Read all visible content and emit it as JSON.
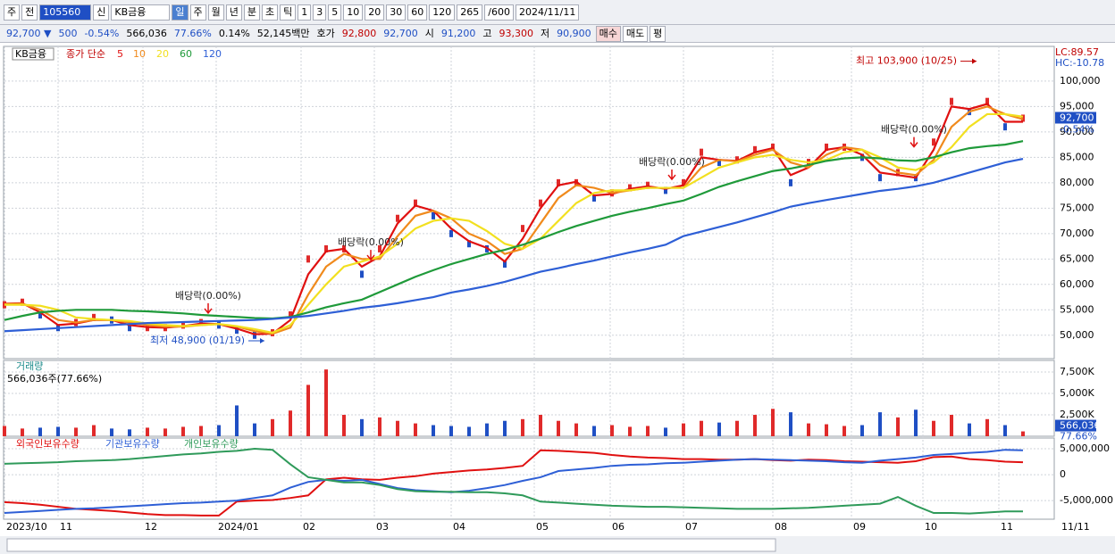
{
  "toolbar": {
    "row1": [
      "주",
      "전",
      "105560",
      "신",
      "KB금융",
      "일",
      "주",
      "월",
      "년",
      "분",
      "초",
      "틱",
      "1",
      "3",
      "5",
      "10",
      "20",
      "30",
      "60",
      "120",
      "265",
      "/600",
      "2024/11/11"
    ],
    "row2": [
      "92,700 ▼",
      "500",
      "-0.54%",
      "566,036",
      "77.66%",
      "0.14%",
      "52,145백만",
      "호가",
      "92,800",
      "92,700",
      "시",
      "91,200",
      "고",
      "93,300",
      "저",
      "90,900",
      "매수",
      "매도",
      "평"
    ]
  },
  "chart_data": [
    {
      "type": "line",
      "title": "KB금융",
      "legend_title": "종가 단순",
      "colors": {
        "up": "#e02a2a",
        "down": "#1f4fc4"
      },
      "xlim": [
        0,
        58.75
      ],
      "xticks": [
        {
          "value": 0,
          "label": "2023/10"
        },
        {
          "value": 3,
          "label": "11"
        },
        {
          "value": 7.75,
          "label": "12"
        },
        {
          "value": 11.85,
          "label": "2024/01"
        },
        {
          "value": 16.6,
          "label": "02"
        },
        {
          "value": 20.7,
          "label": "03"
        },
        {
          "value": 25,
          "label": "04"
        },
        {
          "value": 29.65,
          "label": "05"
        },
        {
          "value": 33.9,
          "label": "06"
        },
        {
          "value": 38,
          "label": "07"
        },
        {
          "value": 43,
          "label": "08"
        },
        {
          "value": 47.4,
          "label": "09"
        },
        {
          "value": 51.4,
          "label": "10"
        },
        {
          "value": 55.65,
          "label": "11"
        }
      ],
      "end_label": "11/11",
      "ylim": [
        45400,
        106300
      ],
      "yticks": [
        {
          "value": 50000,
          "label": "50,000"
        },
        {
          "value": 55000,
          "label": "55,000"
        },
        {
          "value": 60000,
          "label": "60,000"
        },
        {
          "value": 65000,
          "label": "65,000"
        },
        {
          "value": 70000,
          "label": "70,000"
        },
        {
          "value": 75000,
          "label": "75,000"
        },
        {
          "value": 80000,
          "label": "80,000"
        },
        {
          "value": 85000,
          "label": "85,000"
        },
        {
          "value": 90000,
          "label": "90,000"
        },
        {
          "value": 95000,
          "label": "95,000"
        },
        {
          "value": 100000,
          "label": "100,000"
        }
      ],
      "values": [
        56000,
        56500,
        54000,
        51500,
        52500,
        53500,
        53000,
        51500,
        51500,
        51500,
        52000,
        52500,
        52000,
        51000,
        50000,
        50500,
        54000,
        65000,
        67000,
        67000,
        62000,
        67000,
        73000,
        76000,
        73500,
        70000,
        68000,
        67000,
        64000,
        71000,
        76000,
        80000,
        80000,
        77000,
        78000,
        79000,
        79500,
        78500,
        80000,
        86000,
        84000,
        84500,
        86500,
        87000,
        80000,
        84000,
        87000,
        87000,
        85000,
        81000,
        82000,
        81000,
        88000,
        96000,
        94000,
        96000,
        91000,
        92700
      ],
      "last_label": "92,700",
      "last_change": "-0.54%",
      "lc": "LC:89.57",
      "hc": "HC:-10.78",
      "series": [
        {
          "name": "5",
          "color": "#e01010",
          "values": [
            56200,
            56300,
            54500,
            52000,
            52300,
            53000,
            53000,
            52000,
            51600,
            51500,
            51800,
            52300,
            52200,
            51300,
            50200,
            50300,
            53000,
            62000,
            66500,
            67000,
            63500,
            65500,
            72000,
            75500,
            74500,
            71000,
            68500,
            67200,
            64500,
            69000,
            75000,
            79500,
            80200,
            77500,
            77800,
            78800,
            79300,
            78800,
            79500,
            85000,
            84500,
            84300,
            86000,
            86800,
            81500,
            83000,
            86500,
            87000,
            85500,
            82000,
            81500,
            81000,
            86500,
            95000,
            94500,
            95500,
            92000,
            92000
          ]
        },
        {
          "name": "10",
          "color": "#f08a1c",
          "values": [
            56100,
            56200,
            55000,
            53000,
            52500,
            53000,
            53000,
            52500,
            52000,
            51700,
            51700,
            52000,
            52200,
            51700,
            50800,
            50300,
            51500,
            58000,
            63500,
            66000,
            65000,
            65000,
            69500,
            73500,
            74500,
            73000,
            70000,
            68500,
            66000,
            67000,
            72000,
            77000,
            79500,
            79000,
            78000,
            78500,
            79000,
            79000,
            79000,
            83000,
            84500,
            84200,
            85500,
            86500,
            84000,
            83000,
            85500,
            87000,
            86500,
            83500,
            82000,
            81500,
            84500,
            91000,
            94000,
            95000,
            93500,
            92500
          ]
        },
        {
          "name": "20",
          "color": "#f2e020",
          "values": [
            56000,
            56000,
            55800,
            55000,
            53500,
            53200,
            53000,
            52800,
            52300,
            52000,
            51800,
            52000,
            52200,
            51800,
            51200,
            50500,
            52000,
            56000,
            60000,
            63500,
            64500,
            65500,
            68000,
            71000,
            72500,
            73000,
            72500,
            70500,
            68000,
            67000,
            69000,
            72500,
            76000,
            78000,
            78500,
            78500,
            79000,
            79000,
            79000,
            81000,
            83000,
            84000,
            85000,
            85500,
            84500,
            84000,
            84500,
            86000,
            86500,
            85000,
            83000,
            82500,
            84000,
            87000,
            91000,
            93500,
            93500,
            93000
          ]
        },
        {
          "name": "60",
          "color": "#1f9a3a",
          "values": [
            53000,
            53800,
            54500,
            54800,
            55000,
            55000,
            55000,
            54800,
            54700,
            54500,
            54300,
            54000,
            53800,
            53600,
            53400,
            53300,
            53600,
            54500,
            55500,
            56300,
            57000,
            58500,
            60000,
            61500,
            62800,
            64000,
            65000,
            66000,
            66800,
            67800,
            69000,
            70300,
            71500,
            72500,
            73500,
            74300,
            75000,
            75800,
            76500,
            77800,
            79200,
            80300,
            81300,
            82300,
            82800,
            83500,
            84300,
            84800,
            85000,
            84800,
            84400,
            84300,
            85000,
            86000,
            86800,
            87200,
            87500,
            88200
          ]
        },
        {
          "name": "120",
          "color": "#2e5fd6",
          "values": [
            50800,
            51000,
            51200,
            51400,
            51600,
            51800,
            52000,
            52200,
            52400,
            52500,
            52600,
            52700,
            52800,
            52900,
            53000,
            53200,
            53500,
            53800,
            54300,
            54800,
            55400,
            55800,
            56300,
            56900,
            57500,
            58400,
            59000,
            59700,
            60500,
            61500,
            62500,
            63200,
            64000,
            64700,
            65500,
            66300,
            67000,
            67800,
            69500,
            70400,
            71300,
            72200,
            73200,
            74200,
            75300,
            76000,
            76600,
            77200,
            77800,
            78400,
            78800,
            79300,
            80000,
            81000,
            82000,
            83000,
            84000,
            84700
          ]
        }
      ],
      "high_low": [
        {
          "text": "최고 103,900 (10/25)",
          "x": 54.4,
          "y": 103900,
          "color": "#c00000"
        },
        {
          "text": "최저 48,900 (01/19)",
          "x": 14.55,
          "y": 48900,
          "color": "#1f4fc4"
        }
      ],
      "dividends": [
        {
          "text": "배당락(0.00%)",
          "x": 11.4,
          "y": 57700
        },
        {
          "text": "배당락(0.00%)",
          "x": 20.5,
          "y": 68200
        },
        {
          "text": "배당락(0.00%)",
          "x": 37.35,
          "y": 84000
        },
        {
          "text": "배당락(0.00%)",
          "x": 50.9,
          "y": 90400
        }
      ]
    },
    {
      "type": "bar",
      "title": "거래량",
      "subtitle": "566,036주(77.66%)",
      "ylim": [
        0,
        8650
      ],
      "yticks": [
        {
          "value": 2500,
          "label": "2,500K"
        },
        {
          "value": 5000,
          "label": "5,000K"
        },
        {
          "value": 7500,
          "label": "7,500K"
        }
      ],
      "values": [
        1200,
        900,
        1000,
        1100,
        1000,
        1300,
        900,
        800,
        1000,
        900,
        1100,
        1200,
        1300,
        3600,
        1500,
        2000,
        3000,
        6000,
        7800,
        2500,
        2000,
        2200,
        1800,
        1500,
        1300,
        1200,
        1100,
        1500,
        1800,
        2000,
        2500,
        1800,
        1500,
        1200,
        1300,
        1100,
        1200,
        1000,
        1500,
        1800,
        1600,
        1800,
        2500,
        3200,
        2800,
        1500,
        1400,
        1200,
        1300,
        2800,
        2200,
        3100,
        1800,
        2500,
        1500,
        2000,
        1300,
        566.036
      ],
      "last_label": "566,036",
      "last_ratio": "77.66%"
    },
    {
      "type": "line",
      "ylim": [
        -8600000,
        6900000
      ],
      "yticks": [
        {
          "value": 5000000,
          "label": "5,000,000"
        },
        0,
        {
          "value": -5000000,
          "label": "-5,000,000"
        }
      ],
      "series": [
        {
          "name": "외국인보유수량",
          "color": "#e01010",
          "values": [
            -5300000,
            -5500000,
            -5800000,
            -6200000,
            -6600000,
            -6800000,
            -7000000,
            -7300000,
            -7600000,
            -7800000,
            -7800000,
            -7900000,
            -7900000,
            -5200000,
            -5000000,
            -4900000,
            -4500000,
            -4000000,
            -900000,
            -600000,
            -900000,
            -1000000,
            -600000,
            -300000,
            200000,
            500000,
            800000,
            1000000,
            1300000,
            1700000,
            4700000,
            4600000,
            4400000,
            4200000,
            3800000,
            3500000,
            3300000,
            3200000,
            3000000,
            3000000,
            2900000,
            2900000,
            3000000,
            2800000,
            2700000,
            2900000,
            2800000,
            2600000,
            2500000,
            2400000,
            2300000,
            2600000,
            3400000,
            3500000,
            3000000,
            2800000,
            2500000,
            2400000
          ]
        },
        {
          "name": "기관보유수량",
          "color": "#2e5fd6",
          "values": [
            -7400000,
            -7200000,
            -7000000,
            -6800000,
            -6600000,
            -6500000,
            -6300000,
            -6100000,
            -5900000,
            -5700000,
            -5500000,
            -5400000,
            -5200000,
            -5000000,
            -4500000,
            -4000000,
            -2500000,
            -1400000,
            -1000000,
            -1200000,
            -1000000,
            -1800000,
            -2600000,
            -3000000,
            -3200000,
            -3400000,
            -3100000,
            -2600000,
            -2000000,
            -1200000,
            -500000,
            700000,
            1000000,
            1300000,
            1700000,
            1900000,
            2000000,
            2200000,
            2300000,
            2500000,
            2700000,
            2900000,
            3000000,
            2900000,
            2800000,
            2700000,
            2600000,
            2400000,
            2300000,
            2700000,
            3000000,
            3300000,
            3800000,
            4000000,
            4200000,
            4400000,
            4800000,
            4700000
          ]
        },
        {
          "name": "개인보유수량",
          "color": "#2f9a5a",
          "values": [
            2100000,
            2200000,
            2300000,
            2400000,
            2600000,
            2700000,
            2800000,
            3000000,
            3300000,
            3600000,
            3900000,
            4100000,
            4400000,
            4600000,
            5000000,
            4800000,
            2000000,
            -500000,
            -1000000,
            -1500000,
            -1500000,
            -2000000,
            -2800000,
            -3200000,
            -3300000,
            -3300000,
            -3400000,
            -3400000,
            -3600000,
            -4000000,
            -5200000,
            -5400000,
            -5600000,
            -5800000,
            -6000000,
            -6100000,
            -6200000,
            -6200000,
            -6300000,
            -6400000,
            -6500000,
            -6600000,
            -6600000,
            -6600000,
            -6500000,
            -6400000,
            -6200000,
            -6000000,
            -5800000,
            -5600000,
            -4300000,
            -6000000,
            -7400000,
            -7400000,
            -7500000,
            -7300000,
            -7100000,
            -7100000
          ]
        }
      ]
    }
  ]
}
